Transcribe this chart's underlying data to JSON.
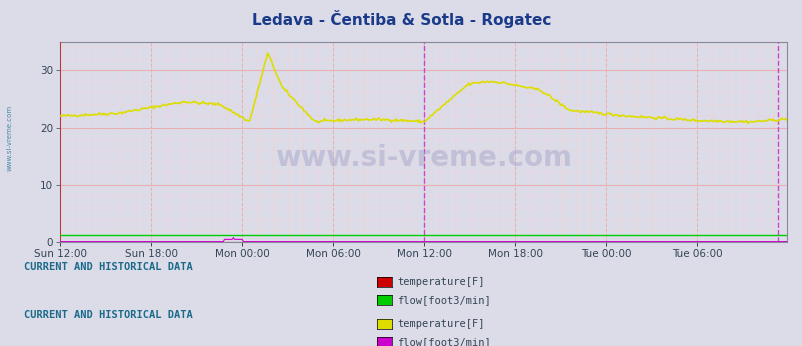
{
  "title": "Ledava - Čentiba & Sotla - Rogatec",
  "title_color": "#1a3a8a",
  "bg_color": "#dcdce8",
  "plot_bg_color": "#dcdce8",
  "ylim": [
    0,
    35
  ],
  "yticks": [
    0,
    10,
    20,
    30
  ],
  "xlabel_ticks": [
    "Sun 12:00",
    "Sun 18:00",
    "Mon 00:00",
    "Mon 06:00",
    "Mon 12:00",
    "Mon 18:00",
    "Tue 00:00",
    "Tue 06:00"
  ],
  "grid_color_major": "#e8b0b0",
  "grid_color_minor": "#f0d0d0",
  "vline_color_pink": "#cc44cc",
  "vline_color_red": "#cc2222",
  "watermark": "www.si-vreme.com",
  "watermark_color": "#aaaacc",
  "sidebar_text": "www.si-vreme.com",
  "sidebar_color": "#4488aa",
  "legend1_label1": "temperature[F]",
  "legend1_label2": "flow[foot3/min]",
  "legend1_color1": "#cc0000",
  "legend1_color2": "#00cc00",
  "legend2_label1": "temperature[F]",
  "legend2_label2": "flow[foot3/min]",
  "legend2_color1": "#dddd00",
  "legend2_color2": "#cc00cc",
  "section_text": "CURRENT AND HISTORICAL DATA",
  "section_text_color": "#1a6a8a",
  "yellow_line_color": "#dddd00",
  "flow_magenta_color": "#cc00cc",
  "temp_red_color": "#cc0000",
  "green_line_color": "#00cc00",
  "num_points": 576
}
